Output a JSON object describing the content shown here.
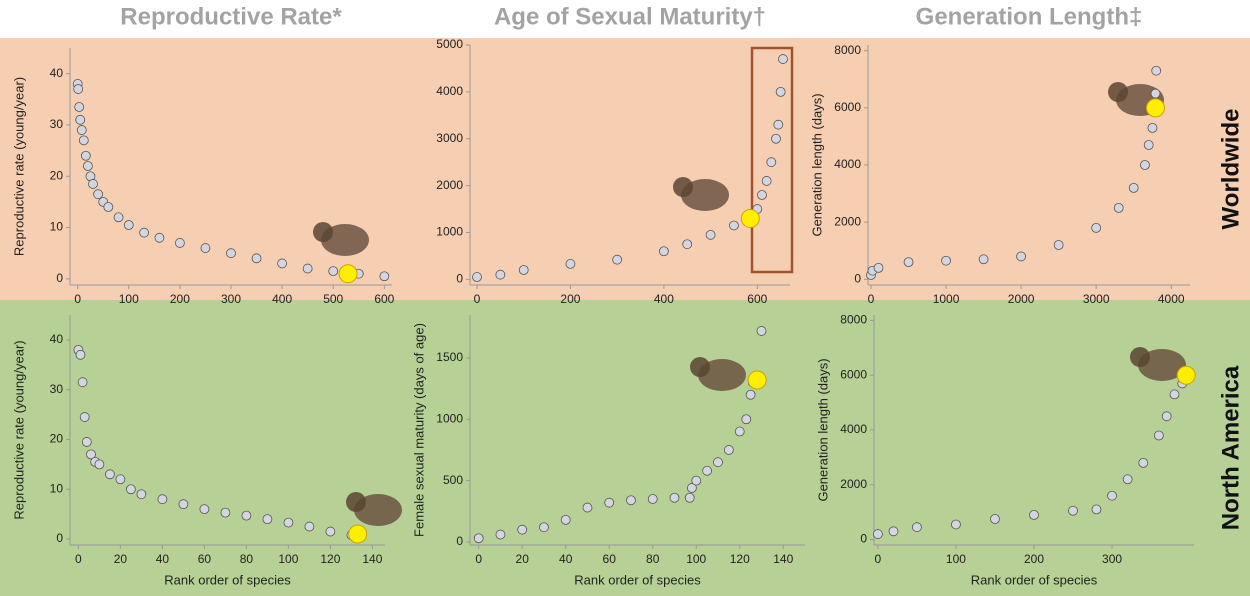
{
  "row_labels": [
    "Worldwide",
    "North America"
  ],
  "chart_data": [
    {
      "type": "scatter",
      "title": "Reproductive Rate*",
      "ylabel": "Reproductive rate (young/year)",
      "xlim": [
        -15,
        615
      ],
      "ylim": [
        -1.2,
        45
      ],
      "xticks": [
        0,
        100,
        200,
        300,
        400,
        500,
        600
      ],
      "yticks": [
        0,
        10,
        20,
        30,
        40
      ],
      "series": [
        {
          "color": "#d3d6e0",
          "x": [
            0,
            1,
            3,
            5,
            8,
            12,
            16,
            20,
            25,
            30,
            40,
            50,
            60,
            80,
            100,
            130,
            160,
            200,
            250,
            300,
            350,
            400,
            450,
            500,
            550,
            600
          ],
          "values": [
            38,
            37,
            33.5,
            31,
            29,
            27,
            24,
            22,
            20,
            18.5,
            16.5,
            15,
            14,
            12,
            10.5,
            9,
            8,
            7,
            6,
            5,
            4,
            3,
            2,
            1.5,
            1,
            0.5
          ]
        },
        {
          "color": "#ffee00",
          "x": [
            529
          ],
          "values": [
            1
          ]
        }
      ]
    },
    {
      "type": "scatter",
      "title": "Age of Sexual Maturity†",
      "xlim": [
        -15,
        670
      ],
      "ylim": [
        -120,
        5000
      ],
      "xticks": [
        0,
        200,
        400,
        600
      ],
      "yticks": [
        0,
        1000,
        2000,
        3000,
        4000,
        5000
      ],
      "series": [
        {
          "color": "#d3d6e0",
          "x": [
            0,
            50,
            100,
            200,
            300,
            400,
            450,
            500,
            550,
            580,
            600,
            610,
            620,
            630,
            640,
            645,
            650,
            655
          ],
          "values": [
            50,
            100,
            200,
            330,
            420,
            600,
            750,
            950,
            1150,
            1300,
            1500,
            1800,
            2100,
            2500,
            3000,
            3300,
            4000,
            4700
          ]
        },
        {
          "color": "#ffee00",
          "x": [
            585
          ],
          "values": [
            1300
          ]
        }
      ]
    },
    {
      "type": "scatter",
      "title": "Generation Length‡",
      "ylabel": "Generation length (days)",
      "xlim": [
        -40,
        4250
      ],
      "ylim": [
        -200,
        8200
      ],
      "xticks": [
        0,
        1000,
        2000,
        3000,
        4000
      ],
      "yticks": [
        0,
        2000,
        4000,
        6000,
        8000
      ],
      "series": [
        {
          "color": "#d3d6e0",
          "x": [
            0,
            20,
            100,
            500,
            1000,
            1500,
            2000,
            2500,
            3000,
            3300,
            3500,
            3650,
            3700,
            3750,
            3780,
            3790,
            3800
          ],
          "values": [
            150,
            300,
            400,
            600,
            650,
            700,
            800,
            1200,
            1800,
            2500,
            3200,
            4000,
            4700,
            5300,
            6000,
            6500,
            7300
          ]
        },
        {
          "color": "#ffee00",
          "x": [
            3790
          ],
          "values": [
            6000
          ]
        }
      ]
    },
    {
      "type": "scatter",
      "xlabel": "Rank order of species",
      "ylabel": "Reproductive rate (young/year)",
      "xlim": [
        -4,
        146
      ],
      "ylim": [
        -1.2,
        45
      ],
      "xticks": [
        0,
        20,
        40,
        60,
        80,
        100,
        120,
        140
      ],
      "yticks": [
        0,
        10,
        20,
        30,
        40
      ],
      "series": [
        {
          "color": "#d3d6e0",
          "x": [
            0,
            1,
            2,
            3,
            4,
            6,
            8,
            10,
            15,
            20,
            25,
            30,
            40,
            50,
            60,
            70,
            80,
            90,
            100,
            110,
            120,
            130
          ],
          "values": [
            38,
            37,
            31.5,
            24.5,
            19.5,
            17,
            15.5,
            15,
            13,
            12,
            10,
            9,
            8,
            7,
            6,
            5.3,
            4.7,
            4,
            3.3,
            2.5,
            1.5,
            0.8
          ]
        },
        {
          "color": "#ffee00",
          "x": [
            133
          ],
          "values": [
            1
          ]
        }
      ]
    },
    {
      "type": "scatter",
      "xlabel": "Rank order of species",
      "ylabel": "Female sexual maturity (days of age)",
      "xlim": [
        -4,
        150
      ],
      "ylim": [
        -25,
        1850
      ],
      "xticks": [
        0,
        20,
        40,
        60,
        80,
        100,
        120,
        140
      ],
      "yticks": [
        0,
        500,
        1000,
        1500
      ],
      "series": [
        {
          "color": "#d3d6e0",
          "x": [
            0,
            10,
            20,
            30,
            40,
            50,
            60,
            70,
            80,
            90,
            97,
            98,
            100,
            105,
            110,
            115,
            120,
            123,
            125,
            126,
            130
          ],
          "values": [
            30,
            60,
            100,
            120,
            180,
            280,
            320,
            340,
            350,
            360,
            360,
            440,
            500,
            580,
            650,
            750,
            900,
            1000,
            1200,
            1300,
            1720
          ]
        },
        {
          "color": "#ffee00",
          "x": [
            128
          ],
          "values": [
            1320
          ]
        }
      ]
    },
    {
      "type": "scatter",
      "xlabel": "Rank order of species",
      "ylabel": "Generation length (days)",
      "xlim": [
        -5,
        405
      ],
      "ylim": [
        -200,
        8200
      ],
      "xticks": [
        0,
        100,
        200,
        300
      ],
      "yticks": [
        0,
        2000,
        4000,
        6000,
        8000
      ],
      "series": [
        {
          "color": "#d3d6e0",
          "x": [
            0,
            20,
            50,
            100,
            150,
            200,
            250,
            280,
            300,
            320,
            340,
            360,
            370,
            380,
            390
          ],
          "values": [
            200,
            300,
            450,
            550,
            750,
            900,
            1050,
            1100,
            1600,
            2200,
            2800,
            3800,
            4500,
            5300,
            5700
          ]
        },
        {
          "color": "#ffee00",
          "x": [
            395
          ],
          "values": [
            6000
          ]
        }
      ]
    }
  ]
}
